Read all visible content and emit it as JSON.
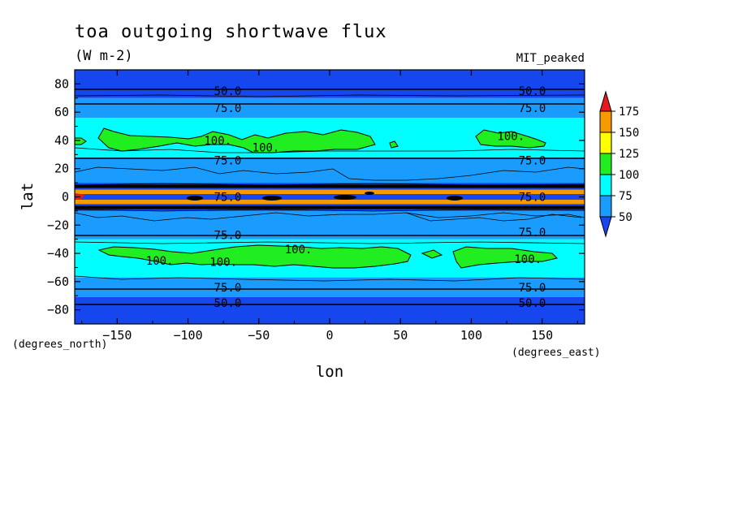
{
  "chart_data": {
    "type": "contour",
    "title": "toa outgoing shortwave flux",
    "units": "(W m-2)",
    "model": "MIT_peaked",
    "xlabel": "lon",
    "ylabel": "lat",
    "x_units": "(degrees_east)",
    "y_units": "(degrees_north)",
    "xlim": [
      -180,
      180
    ],
    "ylim": [
      -90,
      90
    ],
    "x_ticks": [
      -150,
      -100,
      -50,
      0,
      50,
      100,
      150
    ],
    "x_tick_labels": [
      "−150",
      "−100",
      "−50",
      "0",
      "50",
      "100",
      "150"
    ],
    "y_ticks": [
      80,
      60,
      40,
      20,
      0,
      -20,
      -40,
      -60,
      -80
    ],
    "y_tick_labels": [
      "80",
      "60",
      "40",
      "20",
      "0",
      "−20",
      "−40",
      "−60",
      "−80"
    ],
    "zonal_bands": [
      {
        "lat_range": [
          70,
          90
        ],
        "value_class": "<50"
      },
      {
        "lat_range": [
          56,
          70
        ],
        "value_class": "50-75"
      },
      {
        "lat_range": [
          28,
          56
        ],
        "value_class": "75-100"
      },
      {
        "lat_range": [
          10,
          28
        ],
        "value_class": "50-75"
      },
      {
        "lat_range": [
          5,
          10
        ],
        "value_class": "<50"
      },
      {
        "lat_range": [
          2,
          5
        ],
        "value_class": "125-150"
      },
      {
        "lat_range": [
          -2,
          2
        ],
        "value_class": "<50"
      },
      {
        "lat_range": [
          -5,
          -2
        ],
        "value_class": "125-150"
      },
      {
        "lat_range": [
          -10,
          -5
        ],
        "value_class": "<50"
      },
      {
        "lat_range": [
          -30,
          -10
        ],
        "value_class": "50-75"
      },
      {
        "lat_range": [
          -57,
          -30
        ],
        "value_class": "75-100"
      },
      {
        "lat_range": [
          -71,
          -57
        ],
        "value_class": "50-75"
      },
      {
        "lat_range": [
          -90,
          -71
        ],
        "value_class": "<50"
      }
    ],
    "green_regions": [
      {
        "name": "NH storm track band",
        "value_class": "100-125",
        "lat_approx": [
          37,
          47
        ],
        "lon_approx": [
          -160,
          170
        ]
      },
      {
        "name": "SH storm track band",
        "value_class": "100-125",
        "lat_approx": [
          -47,
          -35
        ],
        "lon_approx": [
          -160,
          170
        ]
      }
    ],
    "contour_labels": [
      {
        "text": "50.0",
        "lon": -72,
        "lat": 75
      },
      {
        "text": "50.0",
        "lon": 143,
        "lat": 75
      },
      {
        "text": "75.0",
        "lon": -72,
        "lat": 63
      },
      {
        "text": "75.0",
        "lon": 143,
        "lat": 63
      },
      {
        "text": "100.",
        "lon": -79,
        "lat": 40
      },
      {
        "text": "100.",
        "lon": -45,
        "lat": 35
      },
      {
        "text": "100.",
        "lon": 128,
        "lat": 43
      },
      {
        "text": "75.0",
        "lon": -72,
        "lat": 26
      },
      {
        "text": "75.0",
        "lon": 143,
        "lat": 26
      },
      {
        "text": "75.0",
        "lon": -72,
        "lat": 0
      },
      {
        "text": "75.0",
        "lon": 143,
        "lat": 0
      },
      {
        "text": "75.0",
        "lon": -72,
        "lat": -27
      },
      {
        "text": "75.0",
        "lon": 143,
        "lat": -25
      },
      {
        "text": "100.",
        "lon": -22,
        "lat": -37
      },
      {
        "text": "100.",
        "lon": -120,
        "lat": -45
      },
      {
        "text": "100.",
        "lon": -75,
        "lat": -46
      },
      {
        "text": "100.",
        "lon": 140,
        "lat": -44
      },
      {
        "text": "75.0",
        "lon": -72,
        "lat": -64
      },
      {
        "text": "75.0",
        "lon": 143,
        "lat": -64
      },
      {
        "text": "50.0",
        "lon": -72,
        "lat": -75
      },
      {
        "text": "50.0",
        "lon": 143,
        "lat": -75
      }
    ],
    "colorbar": {
      "levels": [
        "175",
        "150",
        "125",
        "100",
        "75",
        "50"
      ],
      "colors": {
        "gt175": "#e8161f",
        "150-175": "#f59a00",
        "125-150": "#ffff00",
        "100-125": "#20ee20",
        "75-100": "#00ffff",
        "50-75": "#1a9cff",
        "lt50": "#1646ee"
      }
    }
  }
}
